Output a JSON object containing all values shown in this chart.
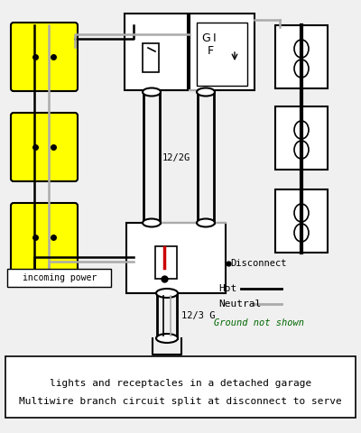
{
  "bg_color": "#f0f0f0",
  "box_color": "#000000",
  "yellow_color": "#ffff00",
  "hot_color": "#000000",
  "neutral_color": "#aaaaaa",
  "red_color": "#cc0000",
  "green_color": "#006600",
  "white_color": "#ffffff",
  "caption_line1": "Multiwire branch circuit split at disconnect to serve",
  "caption_line2": "lights and receptacles in a detached garage",
  "label_12_2G": "12/2G",
  "label_12_3G": "12/3 G",
  "label_disconnect": "Disconnect",
  "label_incoming": "incoming power",
  "label_GFI": "G",
  "label_GFI2": "I",
  "label_GFI3": "F",
  "legend_hot": "Hot",
  "legend_neutral": "Neutral",
  "legend_ground": "Ground not shown"
}
